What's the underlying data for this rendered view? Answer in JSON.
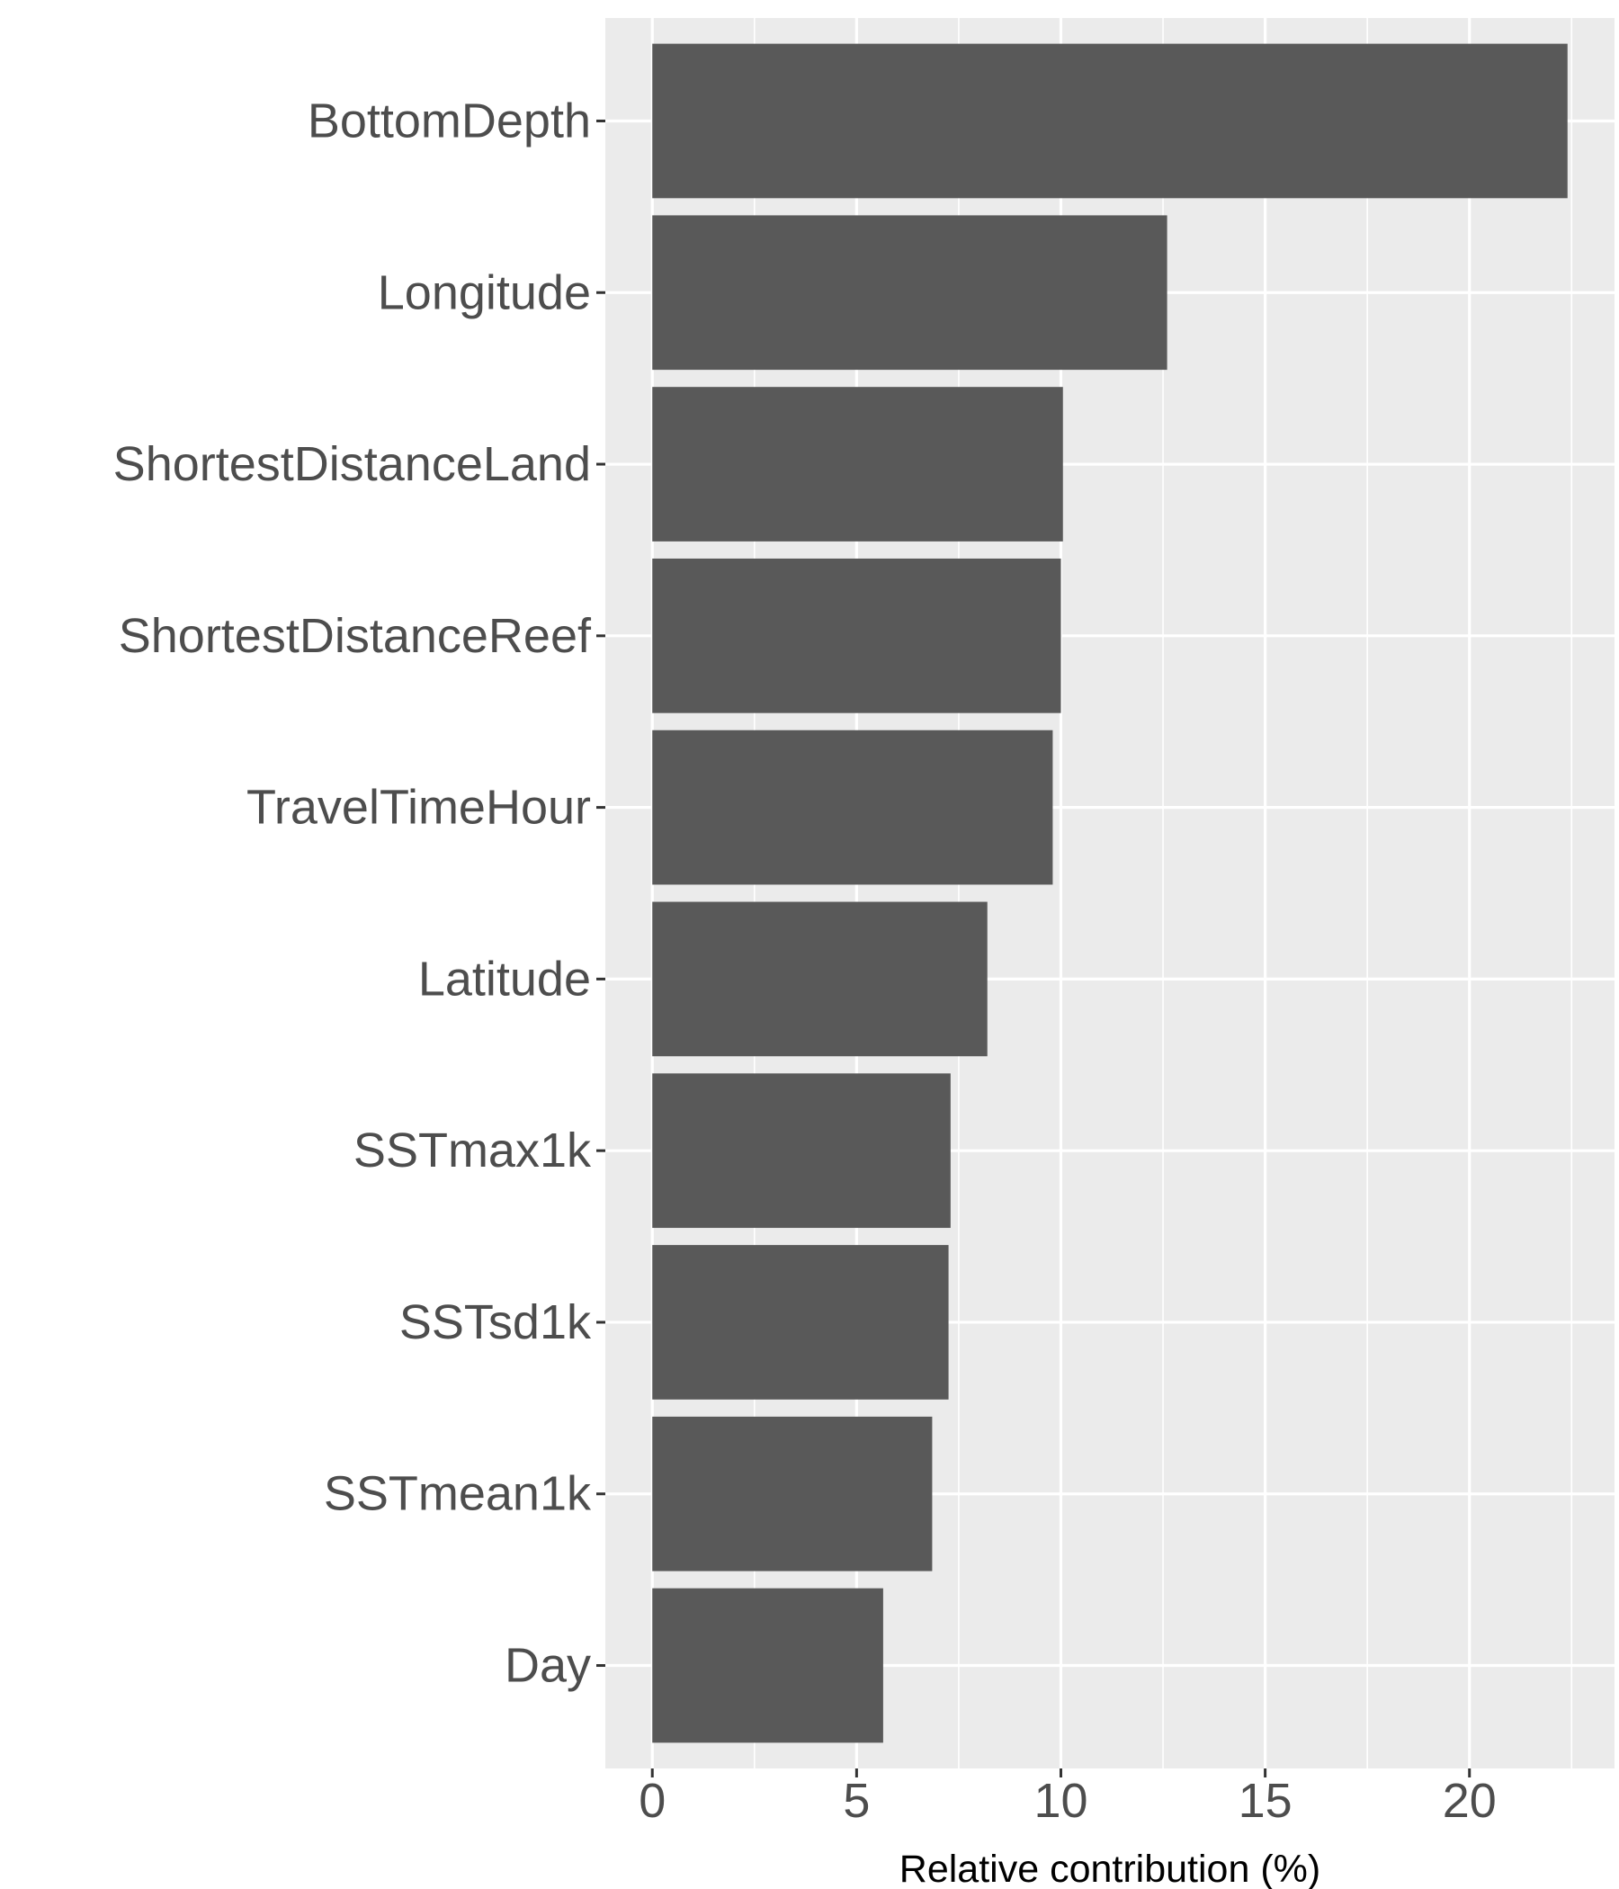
{
  "chart_data": {
    "type": "bar",
    "orientation": "horizontal",
    "categories": [
      "BottomDepth",
      "Longitude",
      "ShortestDistanceLand",
      "ShortestDistanceReef",
      "TravelTimeHour",
      "Latitude",
      "SSTmax1k",
      "SSTsd1k",
      "SSTmean1k",
      "Day"
    ],
    "values": [
      22.4,
      12.6,
      10.05,
      10.0,
      9.8,
      8.2,
      7.3,
      7.25,
      6.85,
      5.65
    ],
    "xlabel": "Relative contribution (%)",
    "ylabel": "",
    "xlim": [
      -1.15,
      23.55
    ],
    "xticks": [
      0,
      5,
      10,
      15,
      20
    ],
    "xtick_labels": [
      "0",
      "5",
      "10",
      "15",
      "20"
    ],
    "grid": true,
    "legend": "none",
    "colors": {
      "bar": "#595959",
      "panel": "#ebebeb",
      "grid": "#ffffff",
      "tick_text": "#4d4d4d",
      "axis_title": "#000000"
    }
  }
}
